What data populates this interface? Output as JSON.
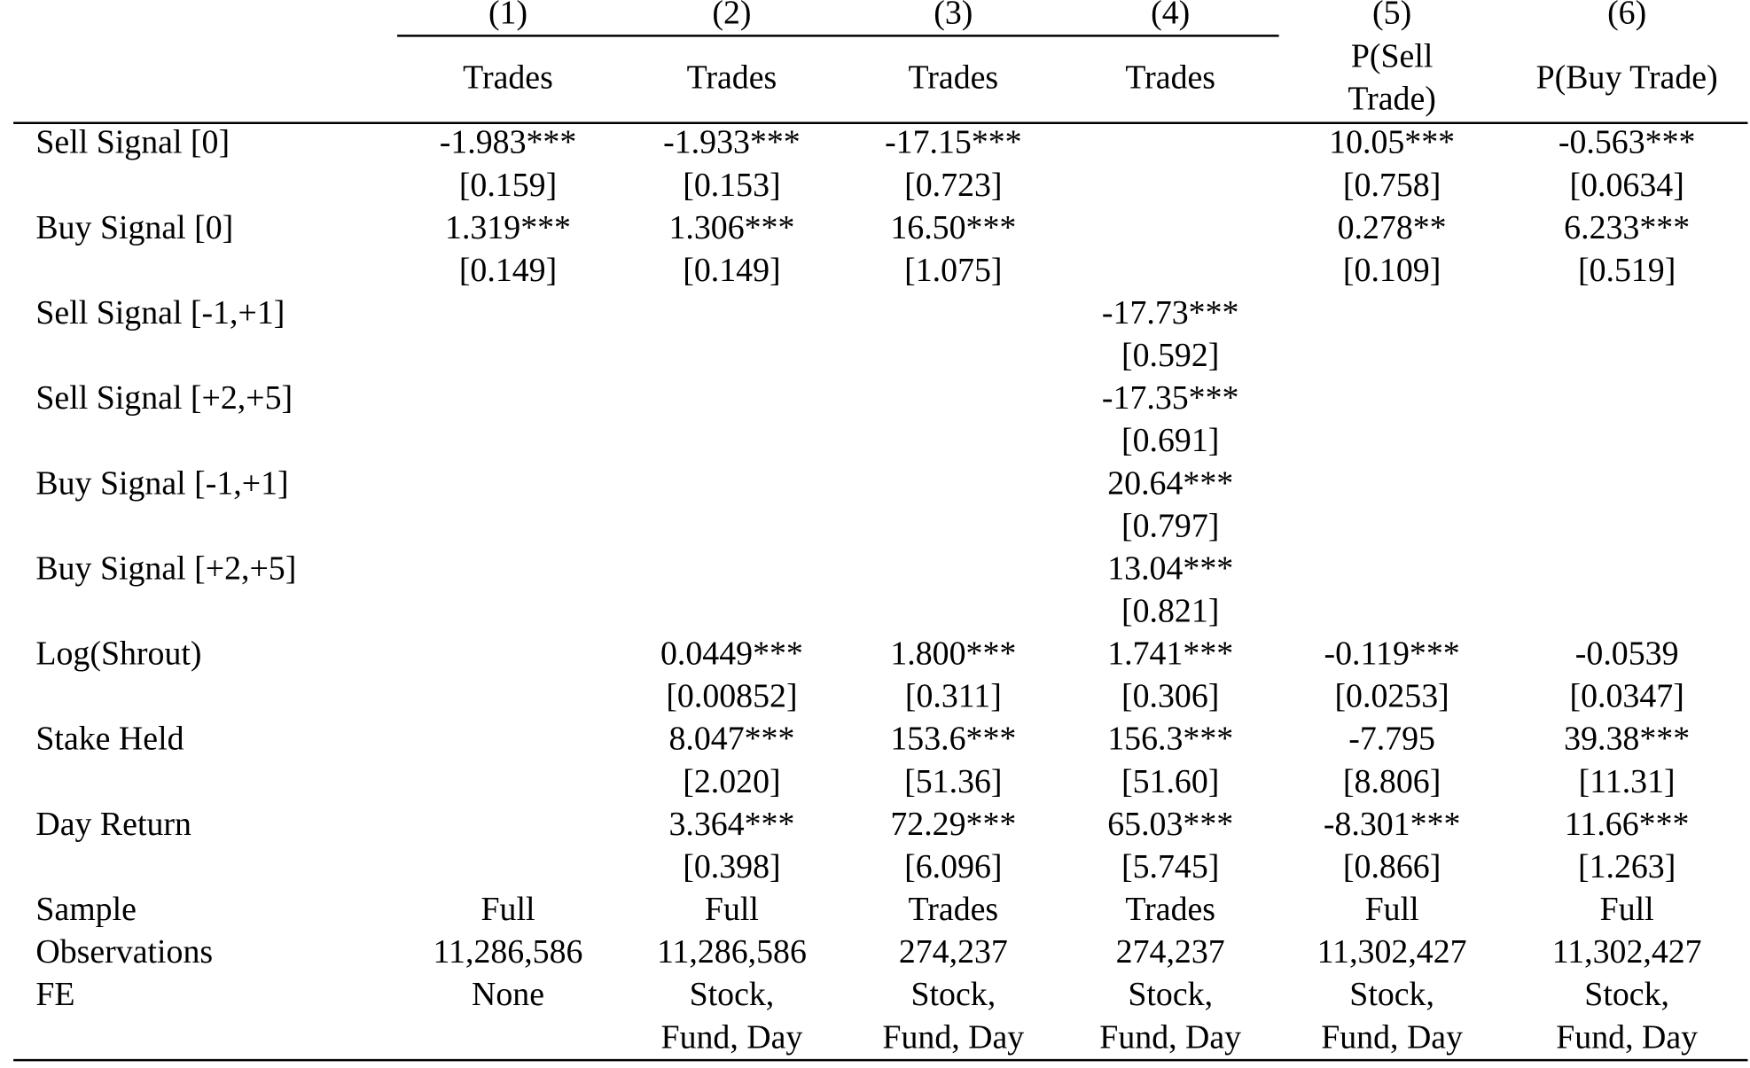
{
  "header": {
    "numbers": [
      "(1)",
      "(2)",
      "(3)",
      "(4)",
      "(5)",
      "(6)"
    ],
    "titles": [
      [
        "Trades"
      ],
      [
        "Trades"
      ],
      [
        "Trades"
      ],
      [
        "Trades"
      ],
      [
        "P(Sell",
        "Trade)"
      ],
      [
        "P(Buy Trade)"
      ]
    ]
  },
  "table": {
    "rows": [
      {
        "label": "Sell Signal [0]",
        "coef": [
          "-1.983***",
          "-1.933***",
          "-17.15***",
          null,
          "10.05***",
          "-0.563***"
        ],
        "se": [
          "[0.159]",
          "[0.153]",
          "[0.723]",
          null,
          "[0.758]",
          "[0.0634]"
        ]
      },
      {
        "label": "Buy Signal [0]",
        "coef": [
          "1.319***",
          "1.306***",
          "16.50***",
          null,
          "0.278**",
          "6.233***"
        ],
        "se": [
          "[0.149]",
          "[0.149]",
          "[1.075]",
          null,
          "[0.109]",
          "[0.519]"
        ]
      },
      {
        "label": "Sell Signal [-1,+1]",
        "coef": [
          null,
          null,
          null,
          "-17.73***",
          null,
          null
        ],
        "se": [
          null,
          null,
          null,
          "[0.592]",
          null,
          null
        ]
      },
      {
        "label": "Sell Signal [+2,+5]",
        "coef": [
          null,
          null,
          null,
          "-17.35***",
          null,
          null
        ],
        "se": [
          null,
          null,
          null,
          "[0.691]",
          null,
          null
        ]
      },
      {
        "label": "Buy Signal [-1,+1]",
        "coef": [
          null,
          null,
          null,
          "20.64***",
          null,
          null
        ],
        "se": [
          null,
          null,
          null,
          "[0.797]",
          null,
          null
        ]
      },
      {
        "label": "Buy Signal [+2,+5]",
        "coef": [
          null,
          null,
          null,
          "13.04***",
          null,
          null
        ],
        "se": [
          null,
          null,
          null,
          "[0.821]",
          null,
          null
        ]
      },
      {
        "label": "Log(Shrout)",
        "coef": [
          null,
          "0.0449***",
          "1.800***",
          "1.741***",
          "-0.119***",
          "-0.0539"
        ],
        "se": [
          null,
          "[0.00852]",
          "[0.311]",
          "[0.306]",
          "[0.0253]",
          "[0.0347]"
        ]
      },
      {
        "label": "Stake Held",
        "coef": [
          null,
          "8.047***",
          "153.6***",
          "156.3***",
          "-7.795",
          "39.38***"
        ],
        "se": [
          null,
          "[2.020]",
          "[51.36]",
          "[51.60]",
          "[8.806]",
          "[11.31]"
        ]
      },
      {
        "label": "Day Return",
        "coef": [
          null,
          "3.364***",
          "72.29***",
          "65.03***",
          "-8.301***",
          "11.66***"
        ],
        "se": [
          null,
          "[0.398]",
          "[6.096]",
          "[5.745]",
          "[0.866]",
          "[1.263]"
        ]
      }
    ],
    "footer": [
      {
        "label": "Sample",
        "cells": [
          [
            "Full"
          ],
          [
            "Full"
          ],
          [
            "Trades"
          ],
          [
            "Trades"
          ],
          [
            "Full"
          ],
          [
            "Full"
          ]
        ]
      },
      {
        "label": "Observations",
        "cells": [
          [
            "11,286,586"
          ],
          [
            "11,286,586"
          ],
          [
            "274,237"
          ],
          [
            "274,237"
          ],
          [
            "11,302,427"
          ],
          [
            "11,302,427"
          ]
        ]
      },
      {
        "label": "FE",
        "cells": [
          [
            "None"
          ],
          [
            "Stock,",
            "Fund, Day"
          ],
          [
            "Stock,",
            "Fund, Day"
          ],
          [
            "Stock,",
            "Fund, Day"
          ],
          [
            "Stock,",
            "Fund, Day"
          ],
          [
            "Stock,",
            "Fund, Day"
          ]
        ]
      }
    ]
  }
}
